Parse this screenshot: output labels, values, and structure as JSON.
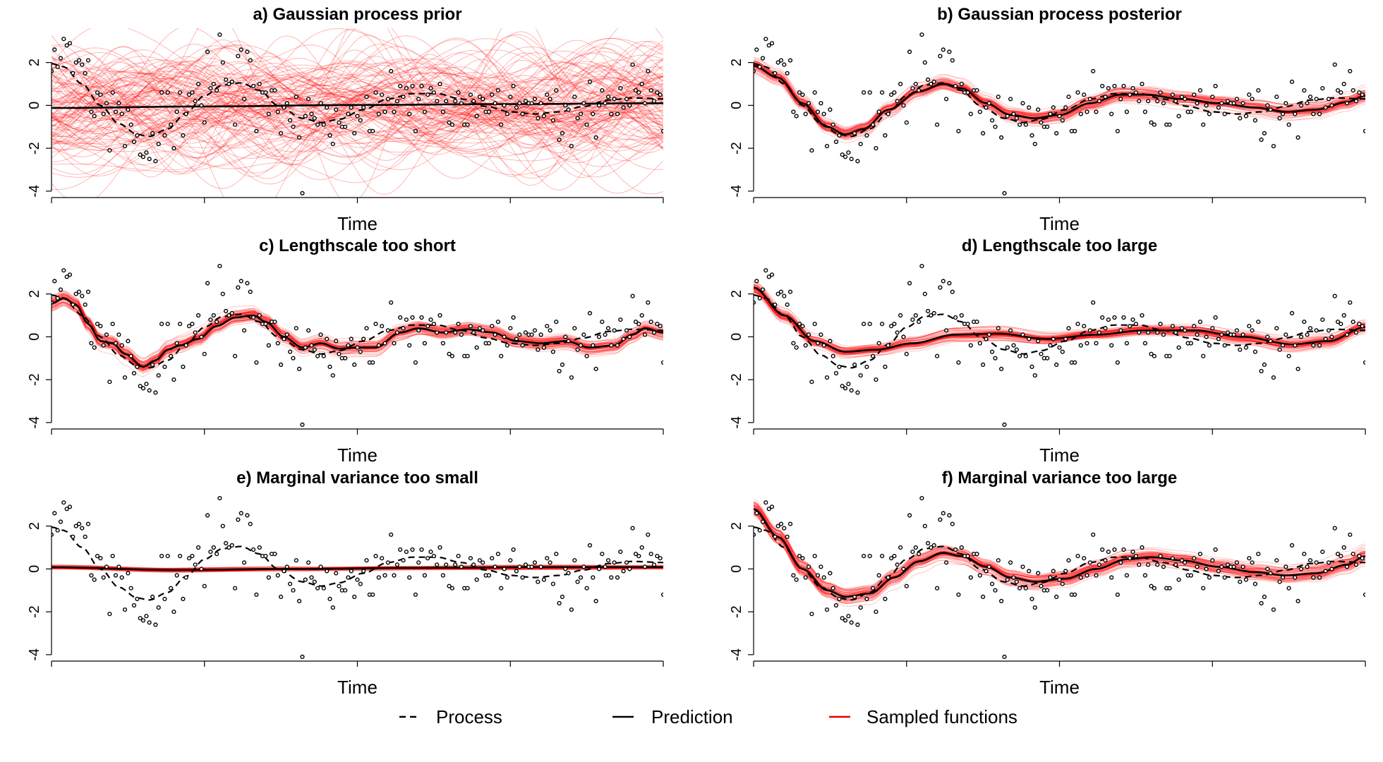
{
  "legend": [
    {
      "label": "Process",
      "style": "dashed",
      "color": "#000000"
    },
    {
      "label": "Prediction",
      "style": "solid",
      "color": "#000000"
    },
    {
      "label": "Sampled functions",
      "style": "solid",
      "color": "#ee0000"
    }
  ],
  "colors": {
    "samples": "#ff0000",
    "prediction": "#000000",
    "process": "#000000",
    "points": "#000000"
  },
  "chart_data": [
    {
      "type": "line",
      "title": "a) Gaussian process prior",
      "xlabel": "Time",
      "ylabel": "",
      "ylim": [
        -4.3,
        3.6
      ],
      "yticks": [
        "-4",
        "-2",
        "0",
        "2"
      ],
      "prediction": [
        [
          0,
          -0.12
        ],
        [
          0.25,
          -0.05
        ],
        [
          0.5,
          0.02
        ],
        [
          0.75,
          0.06
        ],
        [
          1,
          0.1
        ]
      ],
      "sample_mode": "prior"
    },
    {
      "type": "line",
      "title": "b) Gaussian process posterior",
      "xlabel": "Time",
      "ylabel": "",
      "ylim": [
        -4.3,
        3.6
      ],
      "yticks": [
        "-4",
        "-2",
        "0",
        "2"
      ],
      "prediction": [
        [
          0,
          1.85
        ],
        [
          0.04,
          1.3
        ],
        [
          0.08,
          0.1
        ],
        [
          0.12,
          -1.0
        ],
        [
          0.15,
          -1.35
        ],
        [
          0.18,
          -1.1
        ],
        [
          0.22,
          -0.2
        ],
        [
          0.27,
          0.65
        ],
        [
          0.31,
          1.0
        ],
        [
          0.34,
          0.8
        ],
        [
          0.38,
          0.1
        ],
        [
          0.42,
          -0.45
        ],
        [
          0.46,
          -0.6
        ],
        [
          0.5,
          -0.45
        ],
        [
          0.55,
          0.1
        ],
        [
          0.6,
          0.5
        ],
        [
          0.64,
          0.5
        ],
        [
          0.7,
          0.3
        ],
        [
          0.76,
          0.1
        ],
        [
          0.82,
          -0.1
        ],
        [
          0.87,
          -0.3
        ],
        [
          0.92,
          -0.2
        ],
        [
          0.97,
          0.15
        ],
        [
          1,
          0.45
        ]
      ],
      "sample_mode": "posterior",
      "sample_spread": 0.35
    },
    {
      "type": "line",
      "title": "c) Lengthscale too short",
      "xlabel": "Time",
      "ylabel": "",
      "ylim": [
        -4.3,
        3.6
      ],
      "yticks": [
        "-4",
        "-2",
        "0",
        "2"
      ],
      "prediction": [
        [
          0,
          1.55
        ],
        [
          0.02,
          1.8
        ],
        [
          0.04,
          1.5
        ],
        [
          0.06,
          0.6
        ],
        [
          0.08,
          -0.2
        ],
        [
          0.1,
          -0.3
        ],
        [
          0.12,
          -0.8
        ],
        [
          0.15,
          -1.4
        ],
        [
          0.17,
          -1.1
        ],
        [
          0.19,
          -0.6
        ],
        [
          0.21,
          -0.4
        ],
        [
          0.24,
          -0.1
        ],
        [
          0.27,
          0.5
        ],
        [
          0.3,
          0.9
        ],
        [
          0.33,
          1.0
        ],
        [
          0.35,
          0.7
        ],
        [
          0.38,
          0.0
        ],
        [
          0.41,
          -0.5
        ],
        [
          0.44,
          -0.3
        ],
        [
          0.47,
          -0.55
        ],
        [
          0.5,
          -0.5
        ],
        [
          0.53,
          -0.5
        ],
        [
          0.57,
          0.2
        ],
        [
          0.6,
          0.4
        ],
        [
          0.64,
          0.2
        ],
        [
          0.68,
          0.35
        ],
        [
          0.72,
          0.2
        ],
        [
          0.76,
          -0.2
        ],
        [
          0.8,
          -0.3
        ],
        [
          0.84,
          -0.2
        ],
        [
          0.88,
          -0.5
        ],
        [
          0.92,
          -0.4
        ],
        [
          0.95,
          0.1
        ],
        [
          0.97,
          0.4
        ],
        [
          1,
          0.2
        ]
      ],
      "sample_mode": "posterior",
      "sample_spread": 0.35
    },
    {
      "type": "line",
      "title": "d) Lengthscale too large",
      "xlabel": "Time",
      "ylabel": "",
      "ylim": [
        -4.3,
        3.6
      ],
      "yticks": [
        "-4",
        "-2",
        "0",
        "2"
      ],
      "prediction": [
        [
          0,
          2.3
        ],
        [
          0.05,
          1.0
        ],
        [
          0.1,
          -0.2
        ],
        [
          0.15,
          -0.7
        ],
        [
          0.2,
          -0.6
        ],
        [
          0.26,
          -0.3
        ],
        [
          0.33,
          0.1
        ],
        [
          0.4,
          0.15
        ],
        [
          0.48,
          -0.1
        ],
        [
          0.56,
          0.1
        ],
        [
          0.64,
          0.3
        ],
        [
          0.72,
          0.3
        ],
        [
          0.8,
          0.0
        ],
        [
          0.88,
          -0.35
        ],
        [
          0.94,
          -0.2
        ],
        [
          1,
          0.45
        ]
      ],
      "sample_mode": "posterior",
      "sample_spread": 0.3
    },
    {
      "type": "line",
      "title": "e) Marginal variance too small",
      "xlabel": "Time",
      "ylabel": "",
      "ylim": [
        -4.3,
        3.6
      ],
      "yticks": [
        "-4",
        "-2",
        "0",
        "2"
      ],
      "prediction": [
        [
          0,
          0.08
        ],
        [
          0.2,
          -0.05
        ],
        [
          0.4,
          0.0
        ],
        [
          0.6,
          0.05
        ],
        [
          0.8,
          0.08
        ],
        [
          1,
          0.08
        ]
      ],
      "sample_mode": "posterior",
      "sample_spread": 0.1
    },
    {
      "type": "line",
      "title": "f) Marginal variance too large",
      "xlabel": "Time",
      "ylabel": "",
      "ylim": [
        -4.3,
        3.6
      ],
      "yticks": [
        "-4",
        "-2",
        "0",
        "2"
      ],
      "prediction": [
        [
          0,
          2.8
        ],
        [
          0.04,
          1.5
        ],
        [
          0.08,
          0.0
        ],
        [
          0.12,
          -1.0
        ],
        [
          0.15,
          -1.3
        ],
        [
          0.19,
          -1.15
        ],
        [
          0.23,
          -0.4
        ],
        [
          0.27,
          0.35
        ],
        [
          0.31,
          0.75
        ],
        [
          0.34,
          0.6
        ],
        [
          0.38,
          0.1
        ],
        [
          0.42,
          -0.4
        ],
        [
          0.46,
          -0.6
        ],
        [
          0.51,
          -0.45
        ],
        [
          0.56,
          0.0
        ],
        [
          0.61,
          0.45
        ],
        [
          0.65,
          0.55
        ],
        [
          0.7,
          0.4
        ],
        [
          0.76,
          0.1
        ],
        [
          0.82,
          -0.15
        ],
        [
          0.87,
          -0.3
        ],
        [
          0.92,
          -0.2
        ],
        [
          0.97,
          0.2
        ],
        [
          1,
          0.6
        ]
      ],
      "sample_mode": "posterior",
      "sample_spread": 0.4
    }
  ],
  "shared": {
    "process": [
      [
        0,
        1.95
      ],
      [
        0.02,
        1.8
      ],
      [
        0.05,
        1.0
      ],
      [
        0.08,
        0.0
      ],
      [
        0.11,
        -0.85
      ],
      [
        0.14,
        -1.35
      ],
      [
        0.16,
        -1.45
      ],
      [
        0.19,
        -1.1
      ],
      [
        0.22,
        -0.35
      ],
      [
        0.25,
        0.45
      ],
      [
        0.28,
        0.95
      ],
      [
        0.31,
        1.05
      ],
      [
        0.34,
        0.7
      ],
      [
        0.37,
        0.0
      ],
      [
        0.41,
        -0.6
      ],
      [
        0.44,
        -0.8
      ],
      [
        0.47,
        -0.65
      ],
      [
        0.51,
        -0.2
      ],
      [
        0.55,
        0.3
      ],
      [
        0.59,
        0.55
      ],
      [
        0.63,
        0.55
      ],
      [
        0.67,
        0.3
      ],
      [
        0.71,
        -0.05
      ],
      [
        0.75,
        -0.3
      ],
      [
        0.79,
        -0.4
      ],
      [
        0.83,
        -0.3
      ],
      [
        0.87,
        -0.05
      ],
      [
        0.91,
        0.25
      ],
      [
        0.95,
        0.35
      ],
      [
        1,
        0.3
      ]
    ],
    "points": [
      [
        0.0,
        1.6
      ],
      [
        0.005,
        2.6
      ],
      [
        0.01,
        1.8
      ],
      [
        0.015,
        2.2
      ],
      [
        0.02,
        3.1
      ],
      [
        0.025,
        2.8
      ],
      [
        0.03,
        2.9
      ],
      [
        0.035,
        1.5
      ],
      [
        0.04,
        2.0
      ],
      [
        0.045,
        2.1
      ],
      [
        0.05,
        1.9
      ],
      [
        0.055,
        1.5
      ],
      [
        0.06,
        2.1
      ],
      [
        0.065,
        -0.3
      ],
      [
        0.07,
        -0.5
      ],
      [
        0.075,
        0.6
      ],
      [
        0.08,
        0.5
      ],
      [
        0.085,
        -0.4
      ],
      [
        0.09,
        0.1
      ],
      [
        0.095,
        -2.1
      ],
      [
        0.1,
        0.6
      ],
      [
        0.105,
        -0.3
      ],
      [
        0.11,
        0.1
      ],
      [
        0.115,
        -0.4
      ],
      [
        0.12,
        -1.9
      ],
      [
        0.125,
        -0.2
      ],
      [
        0.13,
        -0.9
      ],
      [
        0.135,
        -1.7
      ],
      [
        0.14,
        -1.4
      ],
      [
        0.145,
        -2.3
      ],
      [
        0.15,
        -2.4
      ],
      [
        0.155,
        -2.2
      ],
      [
        0.16,
        -2.5
      ],
      [
        0.165,
        -1.3
      ],
      [
        0.17,
        -2.6
      ],
      [
        0.175,
        -1.8
      ],
      [
        0.18,
        0.6
      ],
      [
        0.185,
        -1.4
      ],
      [
        0.19,
        0.6
      ],
      [
        0.195,
        -0.9
      ],
      [
        0.2,
        -2.0
      ],
      [
        0.205,
        -0.3
      ],
      [
        0.21,
        0.6
      ],
      [
        0.215,
        -1.4
      ],
      [
        0.22,
        -0.4
      ],
      [
        0.225,
        0.5
      ],
      [
        0.23,
        0.6
      ],
      [
        0.235,
        0.2
      ],
      [
        0.24,
        1.0
      ],
      [
        0.245,
        0.0
      ],
      [
        0.25,
        -0.8
      ],
      [
        0.255,
        2.5
      ],
      [
        0.26,
        0.8
      ],
      [
        0.265,
        1.0
      ],
      [
        0.27,
        0.7
      ],
      [
        0.275,
        3.3
      ],
      [
        0.28,
        2.0
      ],
      [
        0.285,
        1.2
      ],
      [
        0.29,
        1.0
      ],
      [
        0.295,
        1.1
      ],
      [
        0.3,
        -0.9
      ],
      [
        0.305,
        2.3
      ],
      [
        0.31,
        2.6
      ],
      [
        0.315,
        0.3
      ],
      [
        0.32,
        2.5
      ],
      [
        0.325,
        2.1
      ],
      [
        0.33,
        0.9
      ],
      [
        0.335,
        -1.2
      ],
      [
        0.34,
        1.0
      ],
      [
        0.345,
        0.6
      ],
      [
        0.35,
        0.6
      ],
      [
        0.355,
        -0.4
      ],
      [
        0.36,
        0.7
      ],
      [
        0.365,
        0.7
      ],
      [
        0.37,
        -0.3
      ],
      [
        0.375,
        -1.3
      ],
      [
        0.38,
        -0.1
      ],
      [
        0.385,
        0.1
      ],
      [
        0.39,
        -0.7
      ],
      [
        0.395,
        -1.0
      ],
      [
        0.4,
        0.4
      ],
      [
        0.405,
        -1.5
      ],
      [
        0.41,
        -4.1
      ],
      [
        0.415,
        -0.5
      ],
      [
        0.42,
        0.3
      ],
      [
        0.425,
        -0.4
      ],
      [
        0.43,
        -0.6
      ],
      [
        0.435,
        -0.9
      ],
      [
        0.44,
        0.1
      ],
      [
        0.445,
        -0.9
      ],
      [
        0.45,
        -0.1
      ],
      [
        0.455,
        -1.4
      ],
      [
        0.46,
        -1.8
      ],
      [
        0.465,
        -0.2
      ],
      [
        0.47,
        -0.8
      ],
      [
        0.475,
        -1.0
      ],
      [
        0.48,
        -1.0
      ],
      [
        0.485,
        -0.4
      ],
      [
        0.49,
        -0.1
      ],
      [
        0.495,
        -1.3
      ],
      [
        0.5,
        -0.5
      ],
      [
        0.505,
        -0.7
      ],
      [
        0.51,
        -0.1
      ],
      [
        0.515,
        0.4
      ],
      [
        0.52,
        -1.2
      ],
      [
        0.525,
        -1.2
      ],
      [
        0.53,
        0.6
      ],
      [
        0.535,
        -0.4
      ],
      [
        0.54,
        0.5
      ],
      [
        0.545,
        -0.3
      ],
      [
        0.55,
        0.3
      ],
      [
        0.555,
        1.6
      ],
      [
        0.56,
        -0.3
      ],
      [
        0.565,
        0.2
      ],
      [
        0.57,
        0.9
      ],
      [
        0.575,
        0.4
      ],
      [
        0.58,
        0.8
      ],
      [
        0.585,
        -0.4
      ],
      [
        0.59,
        0.9
      ],
      [
        0.595,
        -1.2
      ],
      [
        0.6,
        0.3
      ],
      [
        0.605,
        0.9
      ],
      [
        0.61,
        -0.3
      ],
      [
        0.615,
        0.5
      ],
      [
        0.62,
        0.8
      ],
      [
        0.625,
        0.6
      ],
      [
        0.63,
        0.2
      ],
      [
        0.635,
        1.0
      ],
      [
        0.64,
        -0.3
      ],
      [
        0.645,
        0.2
      ],
      [
        0.65,
        -0.8
      ],
      [
        0.655,
        -0.9
      ],
      [
        0.66,
        0.2
      ],
      [
        0.665,
        0.6
      ],
      [
        0.67,
        0.1
      ],
      [
        0.675,
        -0.9
      ],
      [
        0.68,
        -0.9
      ],
      [
        0.685,
        0.5
      ],
      [
        0.69,
        0.2
      ],
      [
        0.695,
        -0.5
      ],
      [
        0.7,
        0.4
      ],
      [
        0.705,
        0.3
      ],
      [
        0.71,
        -0.3
      ],
      [
        0.715,
        -0.3
      ],
      [
        0.72,
        0.5
      ],
      [
        0.725,
        0.1
      ],
      [
        0.73,
        0.7
      ],
      [
        0.735,
        -0.9
      ],
      [
        0.74,
        0.0
      ],
      [
        0.745,
        -0.4
      ],
      [
        0.75,
        0.4
      ],
      [
        0.755,
        0.9
      ],
      [
        0.76,
        -0.1
      ],
      [
        0.765,
        0.1
      ],
      [
        0.77,
        -0.4
      ],
      [
        0.775,
        0.2
      ],
      [
        0.78,
        0.1
      ],
      [
        0.785,
        0.1
      ],
      [
        0.79,
        0.3
      ],
      [
        0.795,
        -0.6
      ],
      [
        0.8,
        0.1
      ],
      [
        0.805,
        -0.5
      ],
      [
        0.81,
        0.5
      ],
      [
        0.815,
        0.3
      ],
      [
        0.82,
        -0.7
      ],
      [
        0.825,
        0.7
      ],
      [
        0.83,
        -1.6
      ],
      [
        0.835,
        -1.3
      ],
      [
        0.84,
        0.0
      ],
      [
        0.845,
        -0.2
      ],
      [
        0.85,
        -1.9
      ],
      [
        0.855,
        0.4
      ],
      [
        0.86,
        -0.6
      ],
      [
        0.865,
        -0.4
      ],
      [
        0.87,
        0.1
      ],
      [
        0.875,
        -0.9
      ],
      [
        0.88,
        1.1
      ],
      [
        0.885,
        -0.4
      ],
      [
        0.89,
        -1.5
      ],
      [
        0.895,
        0.0
      ],
      [
        0.9,
        0.7
      ],
      [
        0.905,
        0.1
      ],
      [
        0.91,
        0.4
      ],
      [
        0.915,
        -0.4
      ],
      [
        0.92,
        0.3
      ],
      [
        0.925,
        -0.4
      ],
      [
        0.93,
        0.8
      ],
      [
        0.935,
        -0.1
      ],
      [
        0.94,
        0.3
      ],
      [
        0.945,
        0.0
      ],
      [
        0.95,
        1.9
      ],
      [
        0.955,
        0.7
      ],
      [
        0.96,
        0.6
      ],
      [
        0.965,
        1.0
      ],
      [
        0.97,
        0.1
      ],
      [
        0.975,
        1.6
      ],
      [
        0.98,
        0.7
      ],
      [
        0.985,
        0.2
      ],
      [
        0.99,
        0.6
      ],
      [
        0.995,
        0.5
      ],
      [
        1.0,
        -1.2
      ]
    ]
  }
}
